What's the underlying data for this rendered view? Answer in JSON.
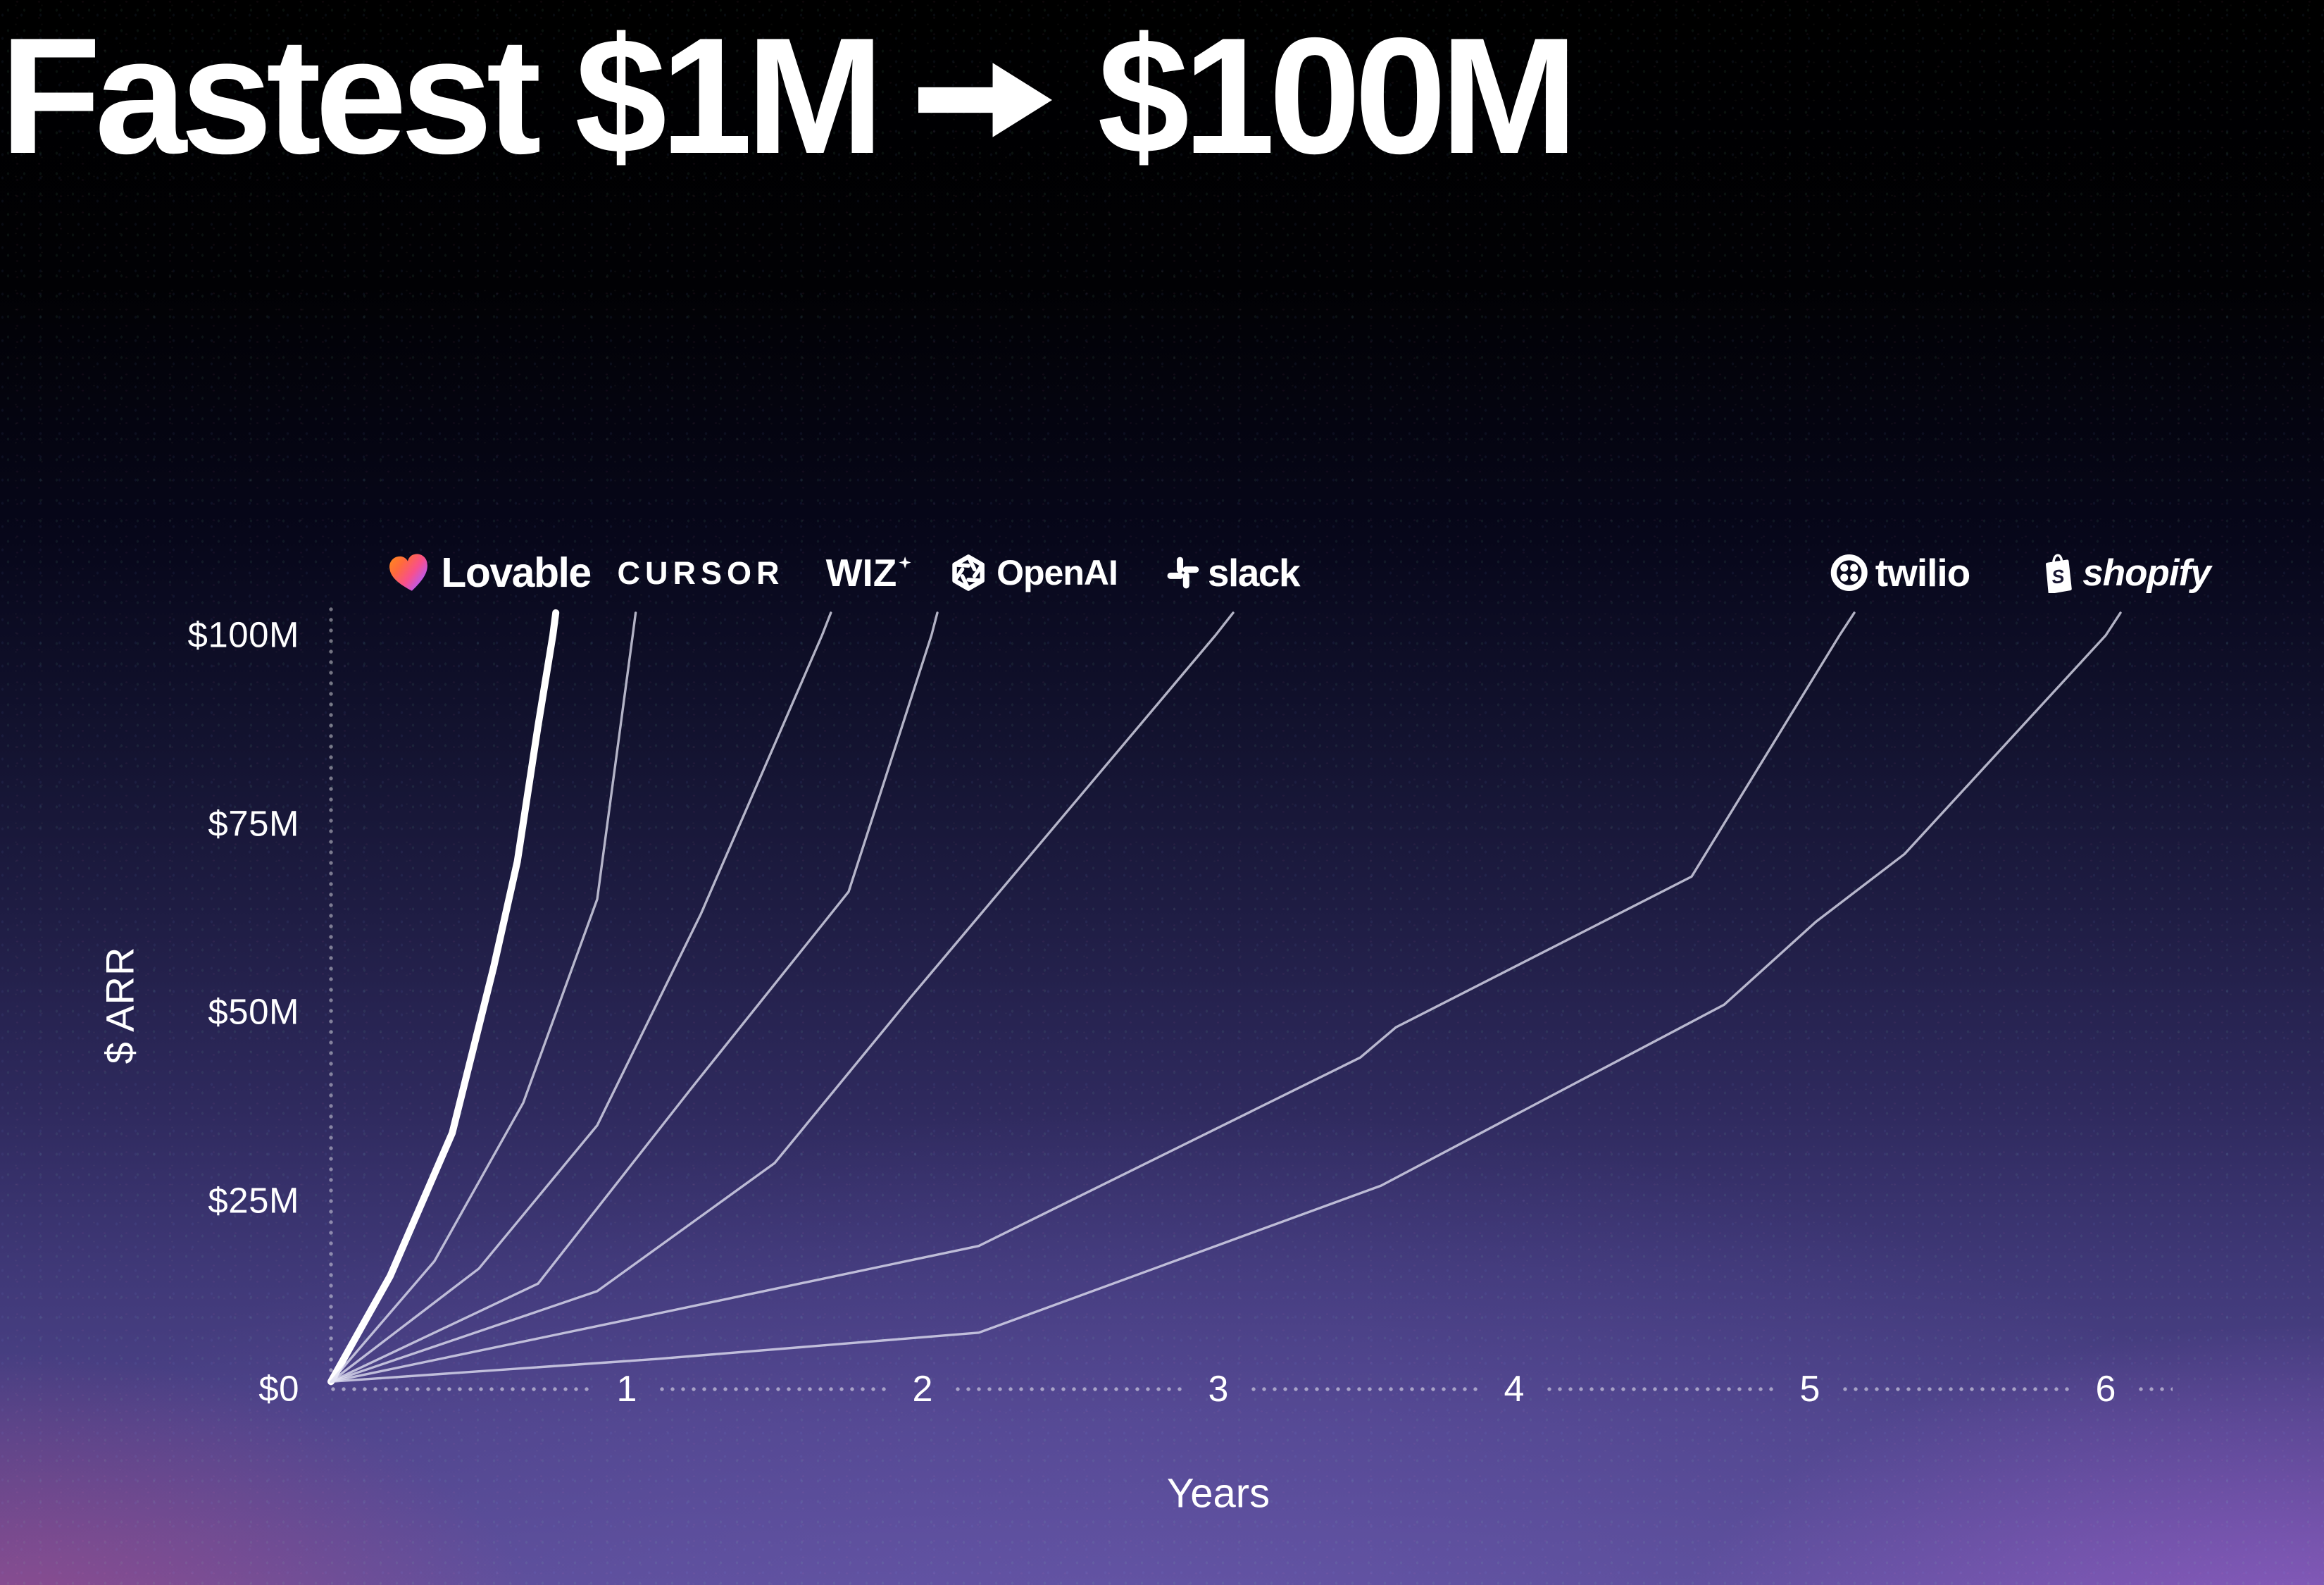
{
  "title": {
    "left": "Fastest $1M",
    "right": "$100M",
    "arrow_icon": "arrow-right-icon"
  },
  "y_axis": {
    "label": "$ ARR",
    "ticks": [
      "$0",
      "$25M",
      "$50M",
      "$75M",
      "$100M"
    ]
  },
  "x_axis": {
    "label": "Years",
    "ticks": [
      "1",
      "2",
      "3",
      "4",
      "5",
      "6"
    ]
  },
  "companies": [
    {
      "name": "Lovable",
      "icon": "lovable-heart-icon"
    },
    {
      "name": "CURSOR",
      "icon": null
    },
    {
      "name": "WIZ",
      "icon": "wiz-sparkle-icon"
    },
    {
      "name": "OpenAI",
      "icon": "openai-logo-icon"
    },
    {
      "name": "slack",
      "icon": "slack-logo-icon"
    },
    {
      "name": "twilio",
      "icon": "twilio-logo-icon"
    },
    {
      "name": "shopify",
      "icon": "shopify-bag-icon"
    }
  ],
  "chart_data": {
    "type": "line",
    "title": "Fastest $1M → $100M",
    "xlabel": "Years",
    "ylabel": "$ ARR",
    "xlim": [
      0,
      6.5
    ],
    "ylim": [
      0,
      100
    ],
    "x_ticks": [
      1,
      2,
      3,
      4,
      5,
      6
    ],
    "y_ticks_millions": [
      0,
      25,
      50,
      75,
      100
    ],
    "grid": "dotted axes only",
    "legend_position": "logos above line endpoints",
    "units": "ARR in $ millions, time in years from $1M",
    "series": [
      {
        "name": "Lovable",
        "emphasis": true,
        "time_to_100m_years": 0.75,
        "points": [
          [
            0,
            1
          ],
          [
            0.2,
            15
          ],
          [
            0.41,
            34
          ],
          [
            0.55,
            56
          ],
          [
            0.63,
            70
          ],
          [
            0.7,
            88
          ],
          [
            0.75,
            100
          ],
          [
            0.76,
            103
          ]
        ]
      },
      {
        "name": "Cursor",
        "emphasis": false,
        "time_to_100m_years": 1.0,
        "points": [
          [
            0,
            1
          ],
          [
            0.35,
            17
          ],
          [
            0.65,
            38
          ],
          [
            0.9,
            65
          ],
          [
            1.02,
            100
          ],
          [
            1.03,
            103
          ]
        ]
      },
      {
        "name": "Wiz",
        "emphasis": false,
        "time_to_100m_years": 1.66,
        "points": [
          [
            0,
            1
          ],
          [
            0.5,
            16
          ],
          [
            0.9,
            35
          ],
          [
            1.25,
            63
          ],
          [
            1.66,
            100
          ],
          [
            1.69,
            103
          ]
        ]
      },
      {
        "name": "OpenAI",
        "emphasis": false,
        "time_to_100m_years": 2.0,
        "points": [
          [
            0,
            1
          ],
          [
            0.7,
            14
          ],
          [
            1.22,
            40
          ],
          [
            1.75,
            66
          ],
          [
            2.03,
            100
          ],
          [
            2.05,
            103
          ]
        ]
      },
      {
        "name": "Slack",
        "emphasis": false,
        "time_to_100m_years": 3.0,
        "points": [
          [
            0,
            1
          ],
          [
            0.9,
            13
          ],
          [
            1.5,
            30
          ],
          [
            1.96,
            52
          ],
          [
            2.99,
            100
          ],
          [
            3.05,
            103
          ]
        ]
      },
      {
        "name": "Twilio",
        "emphasis": false,
        "time_to_100m_years": 5.1,
        "points": [
          [
            0,
            1
          ],
          [
            1.1,
            10
          ],
          [
            2.19,
            19
          ],
          [
            3.48,
            44
          ],
          [
            3.6,
            48
          ],
          [
            4.6,
            68
          ],
          [
            5.1,
            100
          ],
          [
            5.15,
            103
          ]
        ]
      },
      {
        "name": "Shopify",
        "emphasis": false,
        "time_to_100m_years": 6.0,
        "points": [
          [
            0,
            1
          ],
          [
            1.1,
            4
          ],
          [
            2.19,
            7.5
          ],
          [
            3.55,
            27
          ],
          [
            4.71,
            51
          ],
          [
            5.02,
            62
          ],
          [
            5.32,
            71
          ],
          [
            6.0,
            100
          ],
          [
            6.05,
            103
          ]
        ]
      }
    ]
  },
  "colors": {
    "background_top": "#000000",
    "background_bottom": "#574b93",
    "glow_bottom_left": "#c74d89",
    "glow_bottom_right": "#b668e2",
    "line_emphasis": "#ffffff",
    "line_secondary": "rgba(226,226,242,0.78)",
    "axis_dots": "rgba(255,255,255,0.5)",
    "text": "#ffffff",
    "heart_gradient": [
      "#ff8a1c",
      "#f8508c",
      "#6f6bff"
    ]
  }
}
